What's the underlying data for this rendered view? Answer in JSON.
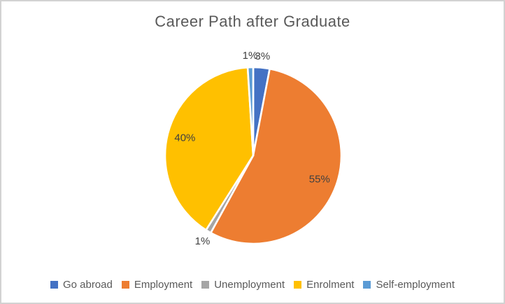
{
  "title": "Career Path after Graduate",
  "chart_data": {
    "type": "pie",
    "title": "Career Path after Graduate",
    "series": [
      {
        "label": "Go abroad",
        "value": 3,
        "data_label": "3%",
        "color": "#4472C4"
      },
      {
        "label": "Employment",
        "value": 55,
        "data_label": "55%",
        "color": "#ED7D31"
      },
      {
        "label": "Unemployment",
        "value": 1,
        "data_label": "1%",
        "color": "#A5A5A5"
      },
      {
        "label": "Enrolment",
        "value": 40,
        "data_label": "40%",
        "color": "#FFC000"
      },
      {
        "label": "Self-employment",
        "value": 1,
        "data_label": "1%",
        "color": "#5B9BD5"
      }
    ],
    "start_angle_deg": 0,
    "direction": "clockwise",
    "legend_position": "bottom",
    "data_labels": "percent",
    "slice_border_color": "#FFFFFF",
    "label_color": "#404040",
    "title_color": "#595959",
    "legend_text_color": "#595959"
  }
}
